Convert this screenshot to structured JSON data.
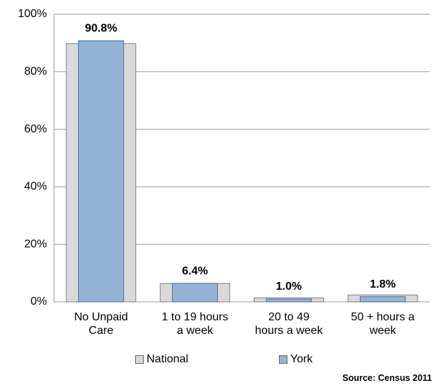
{
  "chart_data": {
    "type": "bar",
    "categories": [
      "No Unpaid Care",
      "1 to 19 hours a week",
      "20 to 49 hours a week",
      "50 + hours a week"
    ],
    "series": [
      {
        "name": "National",
        "color": "#d9d9d9",
        "values": [
          89.8,
          6.4,
          1.4,
          2.4
        ]
      },
      {
        "name": "York",
        "color": "#95b3d7",
        "values": [
          90.8,
          6.4,
          1.0,
          1.8
        ],
        "value_labels": [
          "90.8%",
          "6.4%",
          "1.0%",
          "1.8%"
        ]
      }
    ],
    "ylim": [
      0,
      100
    ],
    "yticks": [
      {
        "value": 0,
        "label": "0%"
      },
      {
        "value": 20,
        "label": "20%"
      },
      {
        "value": 40,
        "label": "40%"
      },
      {
        "value": 60,
        "label": "60%"
      },
      {
        "value": 80,
        "label": "80%"
      },
      {
        "value": 100,
        "label": "100%"
      }
    ],
    "grid": true,
    "legend": "bottom",
    "source": "Source: Census 2011"
  }
}
